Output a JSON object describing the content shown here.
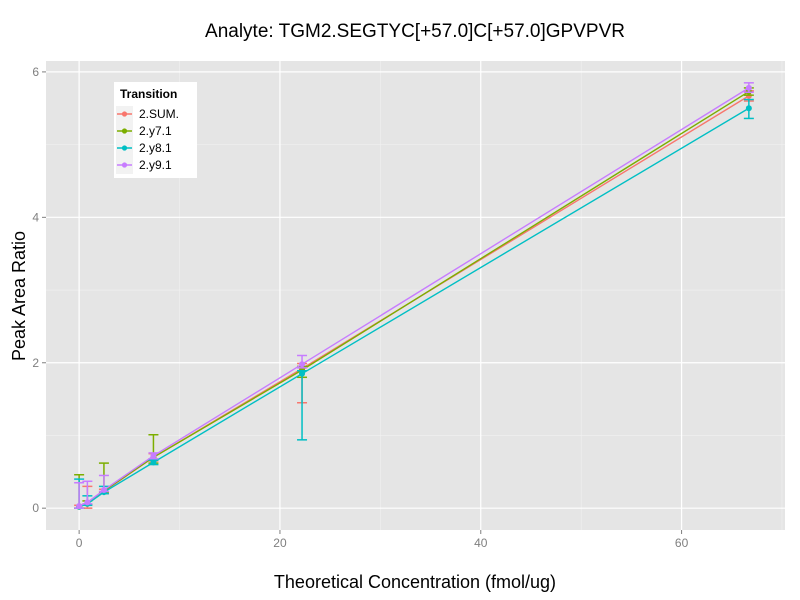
{
  "chart_data": {
    "type": "line",
    "title": "Analyte: TGM2.SEGTYC[+57.0]C[+57.0]GPVPVR",
    "xlabel": "Theoretical Concentration (fmol/ug)",
    "ylabel": "Peak Area Ratio",
    "xlim": [
      -3.3,
      70.3
    ],
    "ylim": [
      -0.3,
      6.15
    ],
    "xticks": [
      0,
      20,
      40,
      60
    ],
    "yticks": [
      0,
      2,
      4,
      6
    ],
    "grid": true,
    "legend": {
      "title": "Transition",
      "position": "top-left"
    },
    "x": [
      0,
      0.82,
      2.47,
      7.4,
      22.2,
      66.7
    ],
    "series": [
      {
        "name": "2.SUM.",
        "color": "#F8766D",
        "values": [
          0.02,
          0.07,
          0.23,
          0.7,
          1.92,
          5.67
        ],
        "err_low": [
          0.0,
          0.0,
          0.2,
          0.65,
          1.45,
          5.6
        ],
        "err_high": [
          0.04,
          0.3,
          0.26,
          0.75,
          1.99,
          5.74
        ]
      },
      {
        "name": "2.y7.1",
        "color": "#7CAE00",
        "values": [
          0.02,
          0.07,
          0.24,
          0.7,
          1.9,
          5.73
        ],
        "err_low": [
          0.0,
          0.05,
          0.22,
          0.62,
          1.8,
          5.68
        ],
        "err_high": [
          0.46,
          0.1,
          0.62,
          1.01,
          1.95,
          5.78
        ]
      },
      {
        "name": "2.y8.1",
        "color": "#00BFC4",
        "values": [
          0.02,
          0.06,
          0.22,
          0.63,
          1.85,
          5.5
        ],
        "err_low": [
          0.0,
          0.04,
          0.2,
          0.6,
          0.94,
          5.36
        ],
        "err_high": [
          0.4,
          0.17,
          0.3,
          0.66,
          1.89,
          5.62
        ]
      },
      {
        "name": "2.y9.1",
        "color": "#C77CFF",
        "values": [
          0.03,
          0.08,
          0.25,
          0.72,
          1.98,
          5.78
        ],
        "err_low": [
          0.0,
          0.06,
          0.23,
          0.68,
          1.93,
          5.72
        ],
        "err_high": [
          0.35,
          0.37,
          0.45,
          0.76,
          2.1,
          5.85
        ]
      }
    ]
  }
}
